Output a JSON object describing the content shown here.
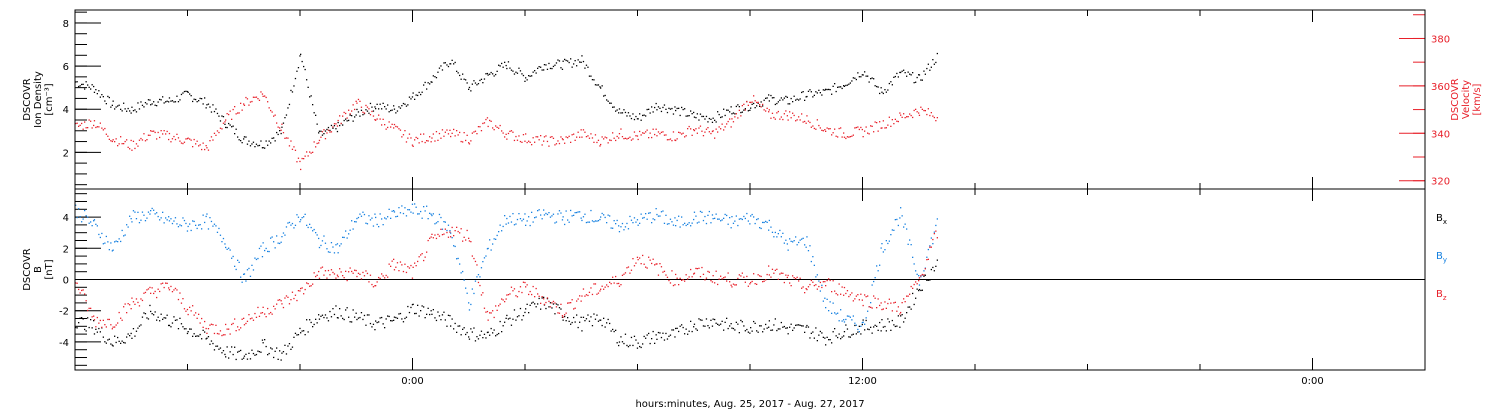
{
  "footer": {
    "xlabel": "hours:minutes, Aug. 25, 2017 - Aug. 27, 2017"
  },
  "x_axis": {
    "ticks": [
      {
        "label": "0:00",
        "hour": 0
      },
      {
        "label": "12:00",
        "hour": 12
      },
      {
        "label": "0:00",
        "hour": 24
      }
    ],
    "range_hours": [
      -9.0,
      27.0
    ]
  },
  "colors": {
    "black": "#000000",
    "red": "#e8202a",
    "blue": "#1580e0"
  },
  "chart_data": [
    {
      "type": "scatter",
      "name": "plasma",
      "x_units": "hours from 0:00",
      "left_axis": {
        "label_lines": [
          "DSCOVR",
          "Ion Density",
          "[cm⁻³]"
        ],
        "ylim": [
          0.3,
          8.6
        ],
        "ticks": [
          2,
          4,
          6,
          8
        ],
        "tick_labels": [
          "2",
          "4",
          "6",
          "8"
        ]
      },
      "right_axis": {
        "label_lines": [
          "DSCOVR",
          "Velocity",
          "[km/s]"
        ],
        "ylim": [
          316.5,
          392
        ],
        "ticks": [
          320,
          340,
          360,
          380
        ],
        "tick_labels": [
          "320",
          "340",
          "360",
          "380"
        ]
      },
      "series": [
        {
          "color": "#000000",
          "axis": "left",
          "x": [
            -9.0,
            -8.5,
            -8.0,
            -7.5,
            -7.0,
            -6.5,
            -6.0,
            -5.5,
            -5.0,
            -4.5,
            -4.0,
            -3.5,
            -3.0,
            -2.5,
            -2.0,
            -1.5,
            -1.0,
            -0.5,
            0.0,
            0.5,
            1.0,
            1.5,
            2.0,
            2.5,
            3.0,
            3.5,
            4.0,
            4.5,
            5.0,
            5.5,
            6.0,
            6.5,
            7.0,
            7.5,
            8.0,
            8.5,
            9.0,
            9.5,
            10.0,
            10.5,
            11.0,
            11.5,
            12.0,
            12.5,
            13.0,
            13.5,
            14.0
          ],
          "y": [
            5.3,
            5.0,
            4.2,
            4.0,
            4.4,
            4.4,
            4.7,
            4.3,
            3.4,
            2.6,
            2.4,
            3.0,
            6.6,
            2.8,
            3.2,
            3.8,
            4.2,
            4.0,
            4.6,
            5.4,
            6.3,
            5.0,
            5.6,
            6.1,
            5.5,
            6.1,
            6.1,
            6.3,
            5.0,
            3.9,
            3.6,
            4.2,
            4.0,
            3.7,
            3.6,
            4.0,
            4.2,
            4.5,
            4.4,
            4.7,
            4.8,
            5.2,
            5.8,
            4.8,
            5.7,
            5.4,
            6.5
          ]
        },
        {
          "color": "#e8202a",
          "axis": "right",
          "x": [
            -9.0,
            -8.5,
            -8.0,
            -7.5,
            -7.0,
            -6.5,
            -6.0,
            -5.5,
            -5.0,
            -4.5,
            -4.0,
            -3.5,
            -3.0,
            -2.5,
            -2.0,
            -1.5,
            -1.0,
            -0.5,
            0.0,
            0.5,
            1.0,
            1.5,
            2.0,
            2.5,
            3.0,
            3.5,
            4.0,
            4.5,
            5.0,
            5.5,
            6.0,
            6.5,
            7.0,
            7.5,
            8.0,
            8.5,
            9.0,
            9.5,
            10.0,
            10.5,
            11.0,
            11.5,
            12.0,
            12.5,
            13.0,
            13.5,
            14.0
          ],
          "y": [
            343,
            345,
            338,
            335,
            340,
            339,
            337,
            334,
            346,
            353,
            357,
            342,
            327,
            338,
            345,
            353,
            347,
            342,
            337,
            339,
            340,
            338,
            345,
            340,
            338,
            337,
            337,
            340,
            337,
            340,
            339,
            340,
            339,
            342,
            340,
            345,
            355,
            348,
            348,
            346,
            342,
            340,
            341,
            344,
            347,
            350,
            347
          ]
        }
      ]
    },
    {
      "type": "scatter",
      "name": "magnetic field",
      "x_units": "hours from 0:00",
      "left_axis": {
        "label_lines": [
          "DSCOVR",
          "B",
          "[nT]"
        ],
        "ylim": [
          -5.8,
          5.8
        ],
        "ticks": [
          -4,
          -2,
          0,
          2,
          4
        ],
        "tick_labels": [
          "-4",
          "-2",
          "0",
          "2",
          "4"
        ]
      },
      "legend": [
        {
          "label": "B",
          "sub": "x",
          "color": "#000000"
        },
        {
          "label": "B",
          "sub": "y",
          "color": "#1580e0"
        },
        {
          "label": "B",
          "sub": "z",
          "color": "#e8202a"
        }
      ],
      "series": [
        {
          "name": "Bx",
          "color": "#000000",
          "x": [
            -9.0,
            -8.5,
            -8.0,
            -7.5,
            -7.0,
            -6.5,
            -6.0,
            -5.5,
            -5.0,
            -4.5,
            -4.0,
            -3.5,
            -3.0,
            -2.5,
            -2.0,
            -1.5,
            -1.0,
            -0.5,
            0.0,
            0.5,
            1.0,
            1.5,
            2.0,
            2.5,
            3.0,
            3.5,
            4.0,
            4.5,
            5.0,
            5.5,
            6.0,
            6.5,
            7.0,
            7.5,
            8.0,
            8.5,
            9.0,
            9.5,
            10.0,
            10.5,
            11.0,
            11.5,
            12.0,
            12.5,
            13.0,
            13.5,
            14.0
          ],
          "y": [
            -2.6,
            -3.0,
            -4.0,
            -3.5,
            -2.0,
            -2.6,
            -3.1,
            -3.8,
            -4.6,
            -4.9,
            -4.2,
            -4.8,
            -3.3,
            -2.3,
            -2.0,
            -2.4,
            -2.8,
            -2.6,
            -1.8,
            -2.1,
            -2.7,
            -3.4,
            -3.6,
            -2.6,
            -2.0,
            -1.4,
            -2.2,
            -2.8,
            -2.4,
            -3.8,
            -4.0,
            -3.6,
            -3.5,
            -2.8,
            -2.6,
            -3.0,
            -3.0,
            -2.8,
            -3.1,
            -3.2,
            -3.7,
            -3.3,
            -3.0,
            -2.9,
            -2.7,
            -0.5,
            1.2
          ]
        },
        {
          "name": "By",
          "color": "#1580e0",
          "x": [
            -9.0,
            -8.5,
            -8.0,
            -7.5,
            -7.0,
            -6.5,
            -6.0,
            -5.5,
            -5.0,
            -4.5,
            -4.0,
            -3.5,
            -3.0,
            -2.5,
            -2.0,
            -1.5,
            -1.0,
            -0.5,
            0.0,
            0.5,
            1.0,
            1.5,
            2.0,
            2.5,
            3.0,
            3.5,
            4.0,
            4.5,
            5.0,
            5.5,
            6.0,
            6.5,
            7.0,
            7.5,
            8.0,
            8.5,
            9.0,
            9.5,
            10.0,
            10.5,
            11.0,
            11.5,
            12.0,
            12.5,
            13.0,
            13.5,
            14.0
          ],
          "y": [
            4.5,
            3.5,
            2.0,
            4.0,
            4.2,
            3.8,
            3.5,
            3.8,
            2.5,
            0.0,
            2.0,
            2.8,
            4.2,
            2.5,
            2.0,
            4.0,
            3.8,
            4.2,
            4.5,
            4.2,
            3.2,
            -1.5,
            2.0,
            4.0,
            3.8,
            4.2,
            4.0,
            4.2,
            3.9,
            3.5,
            3.8,
            4.2,
            3.6,
            4.0,
            4.0,
            3.7,
            4.0,
            3.5,
            2.3,
            2.5,
            -1.5,
            -2.5,
            -3.0,
            2.0,
            4.2,
            0.0,
            3.8
          ]
        },
        {
          "name": "Bz",
          "color": "#e8202a",
          "x": [
            -9.0,
            -8.5,
            -8.0,
            -7.5,
            -7.0,
            -6.5,
            -6.0,
            -5.5,
            -5.0,
            -4.5,
            -4.0,
            -3.5,
            -3.0,
            -2.5,
            -2.0,
            -1.5,
            -1.0,
            -0.5,
            0.0,
            0.5,
            1.0,
            1.5,
            2.0,
            2.5,
            3.0,
            3.5,
            4.0,
            4.5,
            5.0,
            5.5,
            6.0,
            6.5,
            7.0,
            7.5,
            8.0,
            8.5,
            9.0,
            9.5,
            10.0,
            10.5,
            11.0,
            11.5,
            12.0,
            12.5,
            13.0,
            13.5,
            14.0
          ],
          "y": [
            0.0,
            -2.6,
            -2.7,
            -1.5,
            -0.8,
            -0.4,
            -1.8,
            -3.0,
            -3.2,
            -2.6,
            -2.0,
            -1.5,
            -0.8,
            0.5,
            0.3,
            0.5,
            -0.2,
            1.0,
            0.5,
            2.5,
            3.2,
            2.8,
            -2.5,
            -1.0,
            -0.5,
            -1.2,
            -2.0,
            -1.0,
            -0.5,
            0.0,
            1.5,
            0.8,
            0.0,
            0.5,
            0.2,
            0.0,
            0.0,
            0.5,
            0.0,
            -0.5,
            -0.2,
            -0.7,
            -1.2,
            -1.5,
            -1.8,
            0.0,
            3.2
          ]
        }
      ]
    }
  ]
}
